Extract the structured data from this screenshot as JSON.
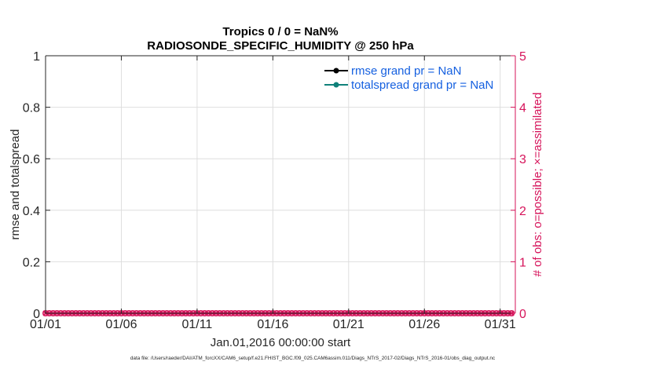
{
  "chart_data": {
    "type": "line",
    "title": "Tropics 0 / 0 = NaN%",
    "subtitle": "RADIOSONDE_SPECIFIC_HUMIDITY @ 250 hPa",
    "xlabel": "Jan.01,2016 00:00:00 start",
    "ylabel": "rmse and totalspread",
    "y2label": "# of obs: o=possible; ×=assimilated",
    "x_ticks": [
      "01/01",
      "01/06",
      "01/11",
      "01/16",
      "01/21",
      "01/26",
      "01/31"
    ],
    "x_tick_days": [
      1,
      6,
      11,
      16,
      21,
      26,
      31
    ],
    "xlim": [
      1,
      32
    ],
    "ylim": [
      0,
      1
    ],
    "y_ticks": [
      "0",
      "0.2",
      "0.4",
      "0.6",
      "0.8",
      "1"
    ],
    "y2lim": [
      0,
      5
    ],
    "y2_ticks": [
      "0",
      "1",
      "2",
      "3",
      "4",
      "5"
    ],
    "grid": true,
    "legend_position": "top-right",
    "series": [
      {
        "name": "rmse grand pr = NaN",
        "color": "#000000",
        "marker": "circle",
        "values": []
      },
      {
        "name": "totalspread grand pr = NaN",
        "color": "#10817a",
        "marker": "circle",
        "values": []
      }
    ],
    "obs_counts": {
      "possible_color": "#d6135a",
      "assimilated_color": "#d6135a",
      "x_start_day": 1,
      "x_step_days": 0.25,
      "possible": [
        0,
        0,
        0,
        0,
        0,
        0,
        0,
        0,
        0,
        0,
        0,
        0,
        0,
        0,
        0,
        0,
        0,
        0,
        0,
        0,
        0,
        0,
        0,
        0,
        0,
        0,
        0,
        0,
        0,
        0,
        0,
        0,
        0,
        0,
        0,
        0,
        0,
        0,
        0,
        0,
        0,
        0,
        0,
        0,
        0,
        0,
        0,
        0,
        0,
        0,
        0,
        0,
        0,
        0,
        0,
        0,
        0,
        0,
        0,
        0,
        0,
        0,
        0,
        0,
        0,
        0,
        0,
        0,
        0,
        0,
        0,
        0,
        0,
        0,
        0,
        0,
        0,
        0,
        0,
        0,
        0,
        0,
        0,
        0,
        0,
        0,
        0,
        0,
        0,
        0,
        0,
        0,
        0,
        0,
        0,
        0,
        0,
        0,
        0,
        0,
        0,
        0,
        0,
        0,
        0,
        0,
        0,
        0,
        0,
        0,
        0,
        0,
        0,
        0,
        0,
        0,
        0,
        0,
        0,
        0,
        0,
        0,
        0,
        0
      ],
      "assimilated": [
        0,
        0,
        0,
        0,
        0,
        0,
        0,
        0,
        0,
        0,
        0,
        0,
        0,
        0,
        0,
        0,
        0,
        0,
        0,
        0,
        0,
        0,
        0,
        0,
        0,
        0,
        0,
        0,
        0,
        0,
        0,
        0,
        0,
        0,
        0,
        0,
        0,
        0,
        0,
        0,
        0,
        0,
        0,
        0,
        0,
        0,
        0,
        0,
        0,
        0,
        0,
        0,
        0,
        0,
        0,
        0,
        0,
        0,
        0,
        0,
        0,
        0,
        0,
        0,
        0,
        0,
        0,
        0,
        0,
        0,
        0,
        0,
        0,
        0,
        0,
        0,
        0,
        0,
        0,
        0,
        0,
        0,
        0,
        0,
        0,
        0,
        0,
        0,
        0,
        0,
        0,
        0,
        0,
        0,
        0,
        0,
        0,
        0,
        0,
        0,
        0,
        0,
        0,
        0,
        0,
        0,
        0,
        0,
        0,
        0,
        0,
        0,
        0,
        0,
        0,
        0,
        0,
        0,
        0,
        0,
        0,
        0,
        0,
        0
      ]
    },
    "footer": "data file: /Users/raeder/DAI/ATM_forcXX/CAM6_setup/f.e21.FHIST_BGC.f09_025.CAM6assim.011/Diags_NTrS_2017-02/Diags_NTrS_2016-01/obs_diag_output.nc"
  }
}
